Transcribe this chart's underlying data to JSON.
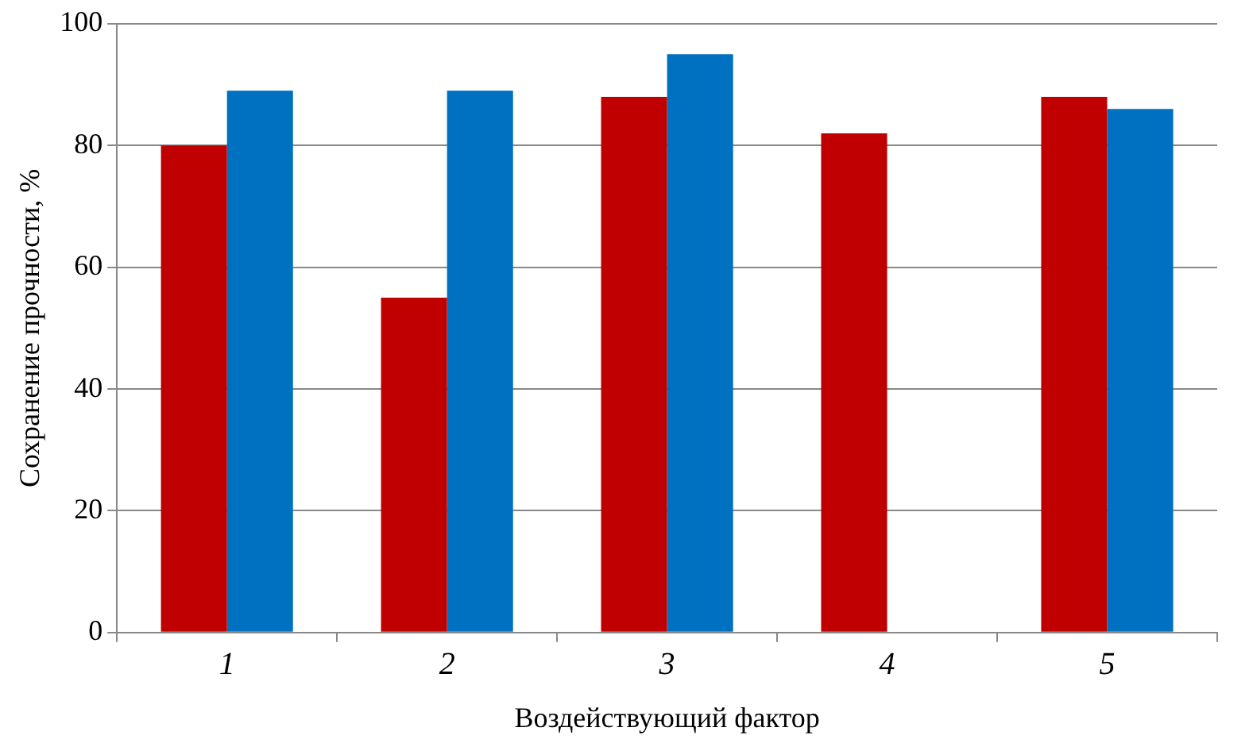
{
  "chart_data": {
    "type": "bar",
    "xlabel": "Воздействующий фактор",
    "ylabel": "Сохранение прочности, %",
    "categories": [
      "1",
      "2",
      "3",
      "4",
      "5"
    ],
    "series": [
      {
        "color": "#c00000",
        "values": [
          80,
          55,
          88,
          82,
          88
        ]
      },
      {
        "color": "#0070c0",
        "values": [
          89,
          89,
          95,
          null,
          86
        ]
      }
    ],
    "ylim": [
      0,
      100
    ],
    "yticks": [
      0,
      20,
      40,
      60,
      80,
      100
    ],
    "grid": "y",
    "legend": false
  }
}
